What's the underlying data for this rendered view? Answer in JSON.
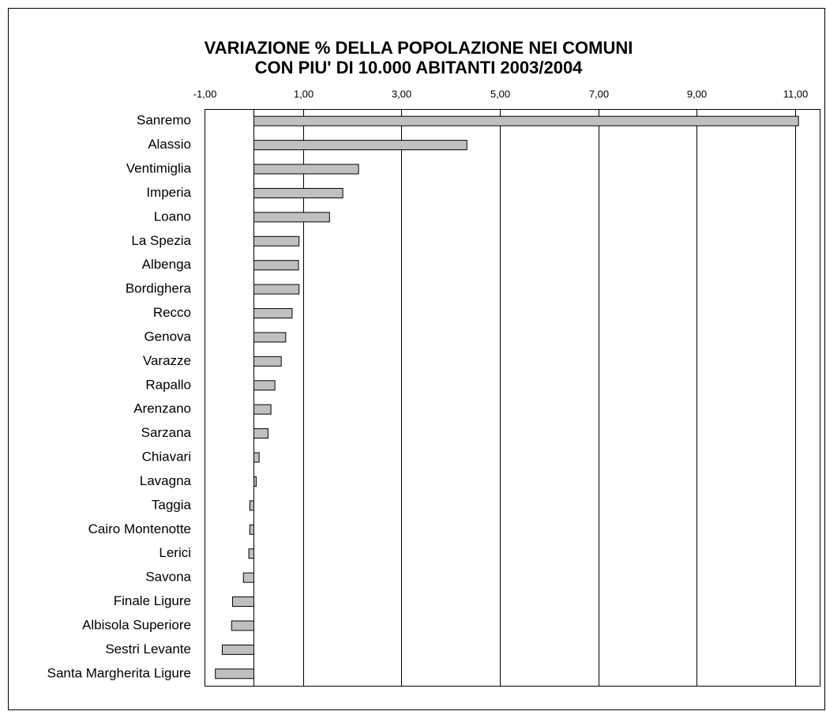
{
  "chart_data": {
    "type": "bar",
    "orientation": "horizontal",
    "title": [
      "VARIAZIONE % DELLA POPOLAZIONE NEI COMUNI",
      "CON PIU' DI 10.000 ABITANTI 2003/2004"
    ],
    "categories": [
      "Sanremo",
      "Alassio",
      "Ventimiglia",
      "Imperia",
      "Loano",
      "La Spezia",
      "Albenga",
      "Bordighera",
      "Recco",
      "Genova",
      "Varazze",
      "Rapallo",
      "Arenzano",
      "Sarzana",
      "Chiavari",
      "Lavagna",
      "Taggia",
      "Cairo Montenotte",
      "Lerici",
      "Savona",
      "Finale Ligure",
      "Albisola Superiore",
      "Sestri Levante",
      "Santa Margherita Ligure"
    ],
    "values": [
      11.07,
      4.33,
      2.13,
      1.81,
      1.54,
      0.92,
      0.91,
      0.92,
      0.78,
      0.65,
      0.56,
      0.43,
      0.35,
      0.29,
      0.11,
      0.05,
      -0.08,
      -0.08,
      -0.1,
      -0.21,
      -0.43,
      -0.45,
      -0.64,
      -0.78
    ],
    "color": "#c0c0c0",
    "xlim": [
      -1,
      11.5
    ],
    "xticks": [
      {
        "value": -1,
        "label": "-1,00"
      },
      {
        "value": 1,
        "label": "1,00"
      },
      {
        "value": 3,
        "label": "3,00"
      },
      {
        "value": 5,
        "label": "5,00"
      },
      {
        "value": 7,
        "label": "7,00"
      },
      {
        "value": 9,
        "label": "9,00"
      },
      {
        "value": 11,
        "label": "11,00"
      }
    ],
    "grid": true
  }
}
